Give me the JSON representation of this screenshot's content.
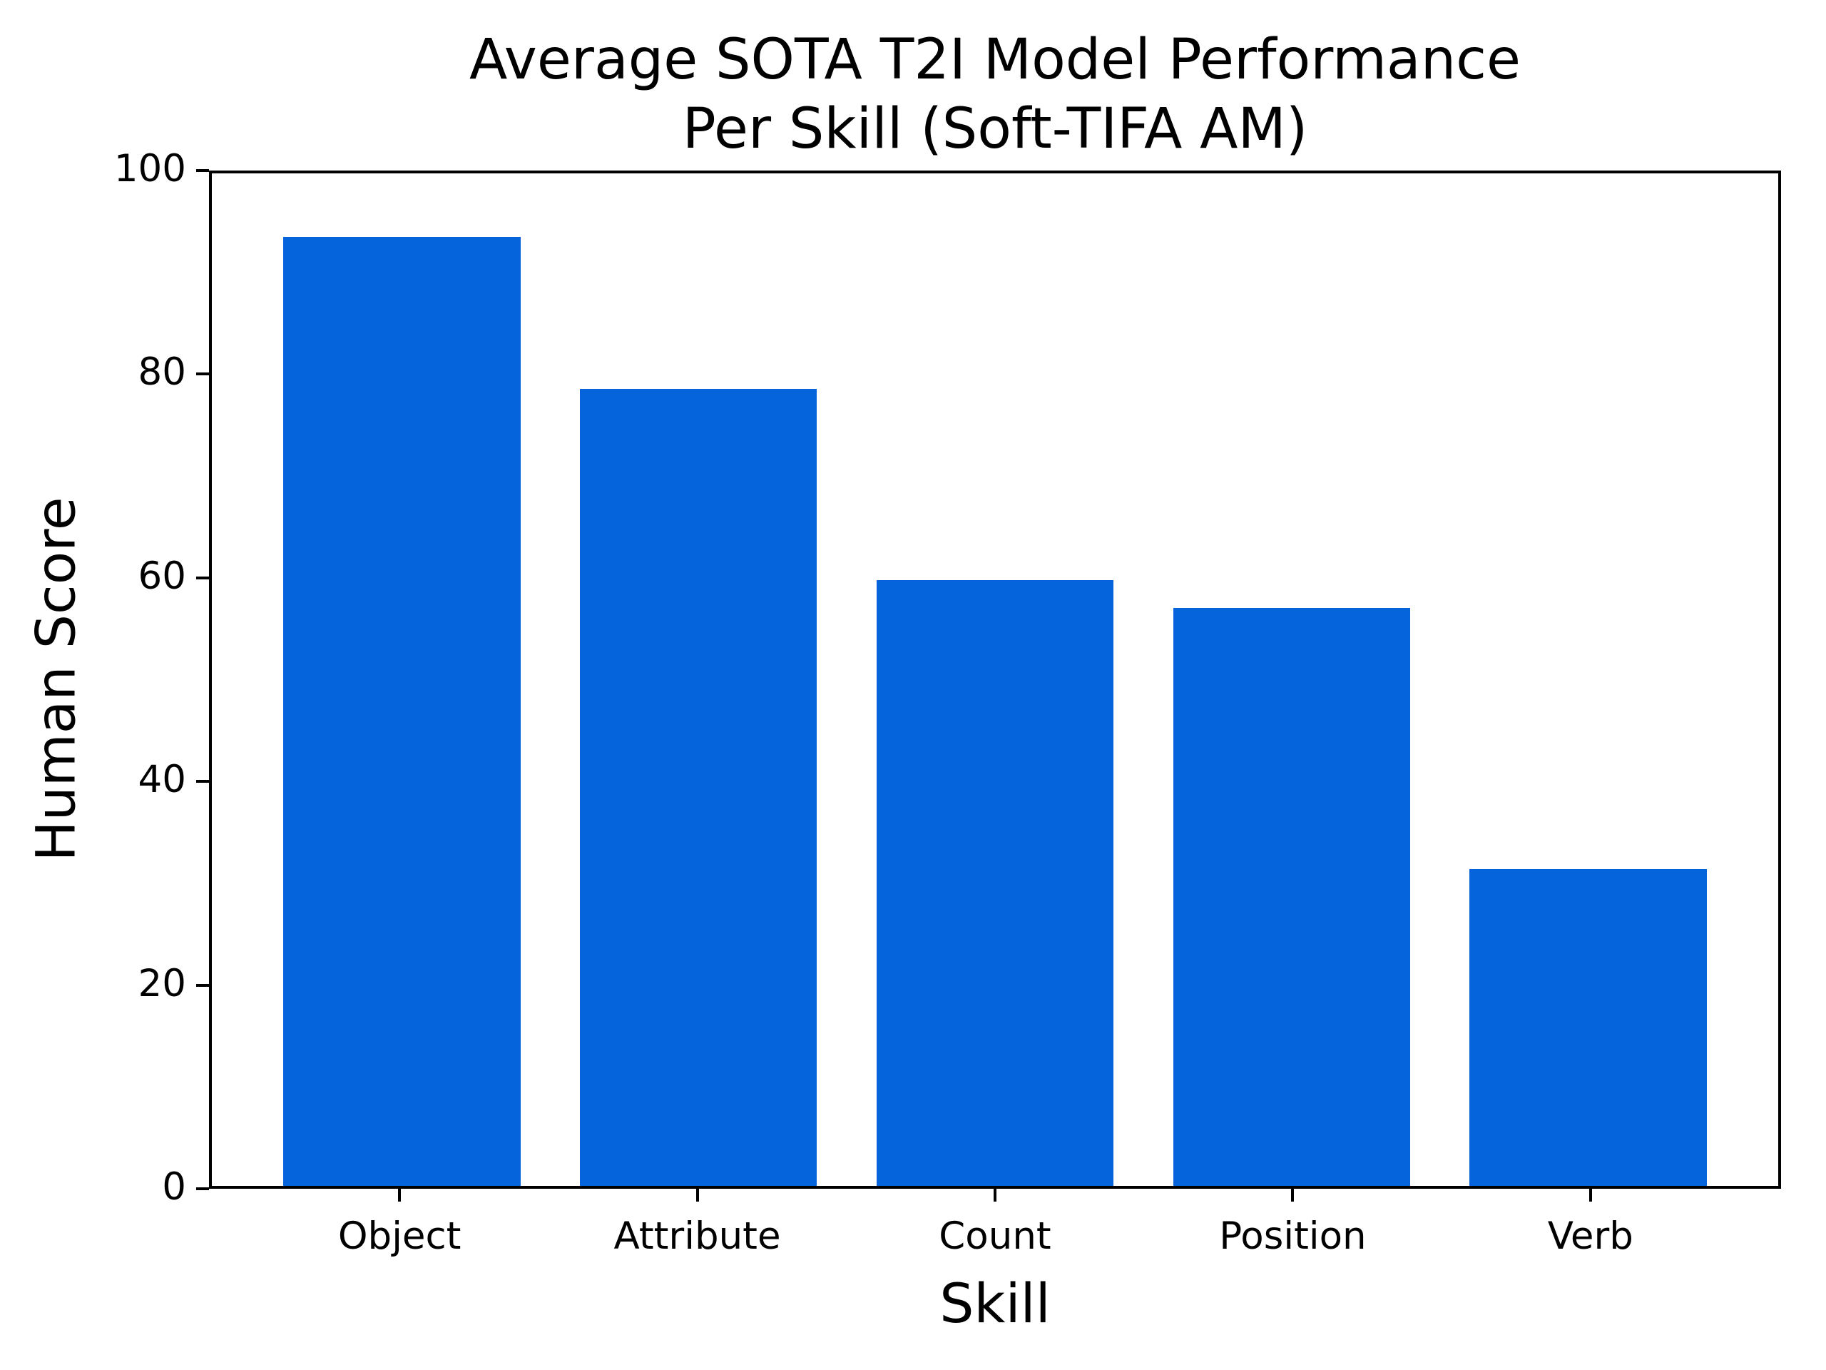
{
  "figure": {
    "title_line1": "Average SOTA T2I Model Performance",
    "title_line2": "Per Skill (Soft-TIFA AM)",
    "xlabel": "Skill",
    "ylabel": "Human Score"
  },
  "chart_data": {
    "type": "bar",
    "title": "Average SOTA T2I Model Performance\nPer Skill (Soft-TIFA AM)",
    "xlabel": "Skill",
    "ylabel": "Human Score",
    "categories": [
      "Object",
      "Attribute",
      "Count",
      "Position",
      "Verb"
    ],
    "values": [
      93.7,
      78.7,
      59.8,
      57.1,
      31.3
    ],
    "ylim": [
      0,
      100
    ],
    "yticks": [
      0,
      20,
      40,
      60,
      80,
      100
    ],
    "bar_color": "#0564DC",
    "text_color": "#000000",
    "grid": false,
    "legend": false
  }
}
